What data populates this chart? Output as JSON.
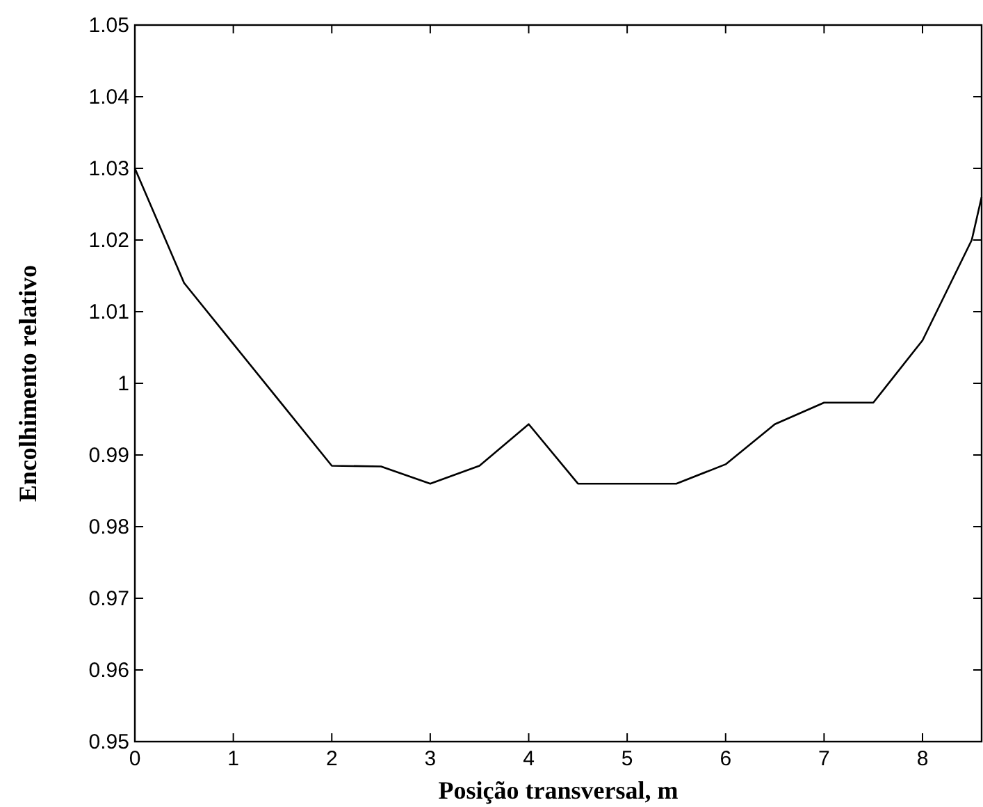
{
  "chart_data": {
    "type": "line",
    "xlabel": "Posição transversal, m",
    "ylabel": "Encolhimento relativo",
    "x": [
      0,
      0.5,
      1,
      1.5,
      2,
      2.5,
      3,
      3.5,
      4,
      4.5,
      5,
      5.5,
      6,
      6.5,
      7,
      7.5,
      8,
      8.5,
      8.6
    ],
    "series": [
      {
        "color": "#000000",
        "values": [
          1.03,
          1.014,
          1.0055,
          0.997,
          0.9885,
          0.9884,
          0.986,
          0.9885,
          0.9943,
          0.986,
          0.986,
          0.986,
          0.9887,
          0.9943,
          0.9973,
          0.9973,
          1.006,
          1.02,
          1.026
        ]
      }
    ],
    "xlim": [
      0,
      8.6
    ],
    "ylim": [
      0.95,
      1.05
    ],
    "xticks": [
      0,
      1,
      2,
      3,
      4,
      5,
      6,
      7,
      8
    ],
    "yticks": [
      0.95,
      0.96,
      0.97,
      0.98,
      0.99,
      {
        "value": 1,
        "label": "1"
      },
      1.01,
      1.02,
      1.03,
      1.04,
      1.05
    ],
    "grid": false,
    "marker": "none",
    "line_style": "solid"
  }
}
